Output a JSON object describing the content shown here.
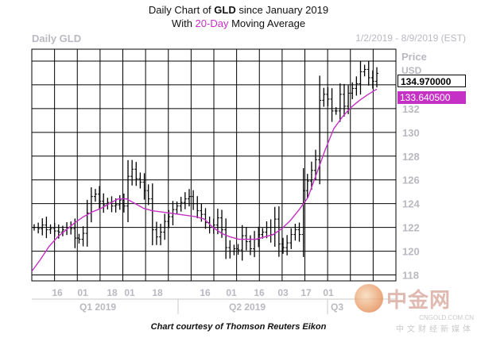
{
  "header": {
    "title_line1_prefix": "Daily Chart of ",
    "title_line1_ticker": "GLD",
    "title_line1_suffix": " since January 2019",
    "title_line2_prefix": "With ",
    "title_line2_accent": "20-Day",
    "title_line2_suffix": " Moving Average"
  },
  "chart_name": "Daily GLD",
  "date_range": "1/2/2019 - 8/9/2019 (EST)",
  "price_label": "Price",
  "currency_label": "USD",
  "last_price": "134.970000",
  "ma_price": "133.640500",
  "quarters": [
    "Q1 2019",
    "Q2 2019",
    "Q3"
  ],
  "credit": "Chart courtesy of Thomson Reuters Eikon",
  "watermark": {
    "main": "中金网",
    "url": "CNGOLD.COM.CN",
    "sub": "中文财经新媒体"
  },
  "colors": {
    "price_bars": "#000000",
    "moving_average": "#c531c5",
    "grid": "#000000",
    "accent": "#c531c5"
  },
  "chart_data": {
    "type": "line",
    "title": "Daily Chart of GLD since January 2019",
    "subtitle": "With 20-Day Moving Average",
    "ylabel": "Price USD",
    "ylim": [
      117.5,
      137
    ],
    "yticks": [
      118,
      120,
      122,
      124,
      126,
      128,
      130,
      132
    ],
    "xticks": [
      "16",
      "01",
      "18",
      "01",
      "18",
      "16",
      "01",
      "16",
      "03",
      "17",
      "01"
    ],
    "grid": true,
    "series": [
      {
        "name": "GLD",
        "style": "ohlc-bars",
        "values": [
          122,
          121.9,
          122.2,
          121.8,
          121.9,
          121.7,
          121.6,
          121.8,
          122,
          121.9,
          121.1,
          121,
          121.5,
          123.2,
          124.6,
          124.8,
          124.2,
          123.9,
          124.1,
          123.8,
          123.9,
          124.3,
          123.8,
          126.3,
          126.9,
          126.1,
          125.8,
          125.1,
          124.4,
          121.8,
          121.2,
          121.6,
          122.5,
          122.9,
          123.5,
          123.8,
          124.1,
          124.4,
          124.6,
          124.0,
          123.4,
          123.1,
          122.4,
          122.0,
          122.2,
          122.8,
          121.8,
          120.3,
          120.0,
          120.2,
          120.1,
          121.3,
          120.8,
          120.2,
          121.0,
          121.4,
          121.6,
          122.0,
          121.4,
          122.7,
          120.6,
          120.3,
          120.7,
          121.4,
          121.8,
          121.4,
          125.1,
          125.9,
          126.8,
          127.7,
          132.7,
          133.2,
          132.8,
          131.8,
          131.8,
          133.2,
          132.2,
          133.3,
          133.7,
          134.1,
          135.1,
          135.3,
          134.6,
          134.3,
          134.97
        ]
      },
      {
        "name": "20-Day",
        "style": "line",
        "values": [
          118.3,
          119.3,
          120.4,
          121.2,
          121.8,
          122.4,
          122.9,
          123.3,
          123.6,
          124.0,
          124.4,
          124.4,
          124.0,
          123.6,
          123.4,
          123.3,
          123.2,
          123.1,
          123.0,
          122.9,
          122.7,
          122.0,
          121.5,
          121.2,
          121.0,
          121.0,
          121.0,
          121.2,
          121.4,
          121.9,
          122.6,
          123.5,
          124.5,
          126.5,
          128.5,
          130.3,
          131.3,
          132.1,
          132.7,
          133.2,
          133.64
        ]
      }
    ]
  }
}
